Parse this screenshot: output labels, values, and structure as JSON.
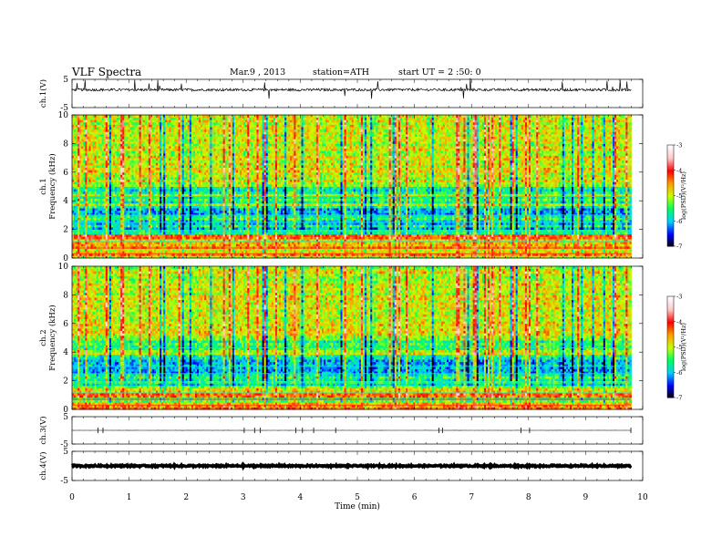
{
  "header": {
    "title": "VLF Spectra",
    "date": "Mar.9 , 2013",
    "station": "station=ATH",
    "start": "start UT = 2 :50: 0"
  },
  "chart_data": {
    "type": "figure",
    "xlabel": "Time (min)",
    "xlim": [
      0,
      10
    ],
    "xticks": [
      "0",
      "1",
      "2",
      "3",
      "4",
      "5",
      "6",
      "7",
      "8",
      "9",
      "10"
    ],
    "data_end_min": 9.8,
    "panels": [
      {
        "type": "line",
        "ylabel": "ch.1(V)",
        "ylim": [
          -5,
          5
        ],
        "yticks": [
          "5",
          "-5"
        ],
        "baseline": 1.3,
        "color": "#000000"
      },
      {
        "type": "heatmap",
        "ylabel_channel": "ch.1",
        "ylabel": "Frequency (kHz)",
        "ylim": [
          0,
          10
        ],
        "yticks": [
          "0",
          "2",
          "4",
          "6",
          "8",
          "10"
        ],
        "colorbar": {
          "label": "log(PSD)(V²/Hz)",
          "range": [
            -7,
            -3
          ],
          "ticks": [
            "-3",
            "-4",
            "-5",
            "-6",
            "-7"
          ],
          "colormap": [
            "#000000",
            "#0000ff",
            "#00d0ff",
            "#00ff60",
            "#c8ff00",
            "#ffa000",
            "#ff0000",
            "#ffc8c8",
            "#ffffff"
          ]
        }
      },
      {
        "type": "heatmap",
        "ylabel_channel": "ch.2",
        "ylabel": "Frequency (kHz)",
        "ylim": [
          0,
          10
        ],
        "yticks": [
          "0",
          "2",
          "4",
          "6",
          "8",
          "10"
        ],
        "colorbar": {
          "label": "log(PSD)(V²/Hz)",
          "range": [
            -7,
            -3
          ],
          "ticks": [
            "-3",
            "-4",
            "-5",
            "-6",
            "-7"
          ],
          "colormap": [
            "#000000",
            "#0000ff",
            "#00d0ff",
            "#00ff60",
            "#c8ff00",
            "#ffa000",
            "#ff0000",
            "#ffc8c8",
            "#ffffff"
          ]
        }
      },
      {
        "type": "line",
        "ylabel": "ch.3(V)",
        "ylim": [
          -5,
          5
        ],
        "yticks": [
          "5",
          "-5"
        ],
        "baseline": 0.0,
        "color": "#000000"
      },
      {
        "type": "line",
        "ylabel": "ch.4(V)",
        "ylim": [
          -5,
          5
        ],
        "yticks": [
          "5",
          "-5"
        ],
        "baseline": 0.0,
        "color": "#000000"
      }
    ]
  }
}
